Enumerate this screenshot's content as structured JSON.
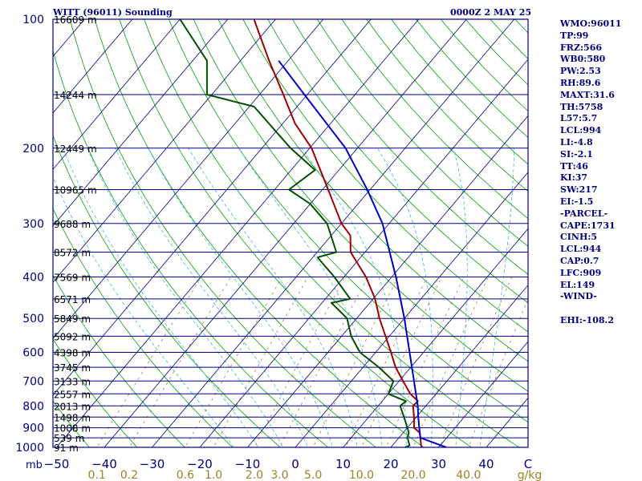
{
  "header": {
    "station_title": "WITT (96011) Sounding",
    "time_label": "0000Z  2 MAY 25"
  },
  "indices": [
    "WMO:96011",
    "TP:99",
    "FRZ:566",
    "WB0:580",
    "PW:2.53",
    "RH:89.6",
    "MAXT:31.6",
    "TH:5758",
    "L57:5.7",
    "LCL:994",
    "LI:-4.8",
    "SI:-2.1",
    "TT:46",
    "KI:37",
    "SW:217",
    "EI:-1.5",
    "-PARCEL-",
    "CAPE:1731",
    "CINH:5",
    "LCL:944",
    "CAP:0.7",
    "LFC:909",
    "EL:149",
    "-WIND-",
    "",
    "EHI:-108.2"
  ],
  "colors": {
    "frame": "#000080",
    "isobar": "#000080",
    "isotherm": "#000080",
    "dry_adiabat": "#00a000",
    "moist_adiabat": "#40b8d0",
    "mixing_ratio": "#a08040",
    "temperature": "#a00000",
    "dewpoint": "#005000",
    "parcel": "#0000c0",
    "label_red": "#c00000",
    "label_mixing": "#a08020"
  },
  "chart_data": {
    "type": "line",
    "subtype": "skew-t log-p sounding",
    "y_unit": "mb",
    "ylim": [
      1000,
      100
    ],
    "y_scale": "log",
    "pressure_ticks": [
      100,
      200,
      300,
      400,
      500,
      600,
      700,
      800,
      900,
      1000
    ],
    "temperature_ticks": [
      -50,
      -40,
      -30,
      -20,
      -10,
      0,
      10,
      20,
      30,
      40
    ],
    "temperature_tick_labels": [
      "−50",
      "−40",
      "−30",
      "−20",
      "−10",
      "0",
      "10",
      "20",
      "30",
      "40"
    ],
    "temperature_tick_end_label": "C",
    "mixing_ratio_ticks": [
      0.1,
      0.2,
      0.6,
      1.0,
      2.0,
      3.0,
      5.0,
      10.0,
      20.0,
      40.0
    ],
    "mixing_ratio_tick_labels": [
      "0.1",
      "0.2",
      "0.6",
      "1.0",
      "2.0",
      "3.0",
      "5.0",
      "10.0",
      "20.0",
      "40.0"
    ],
    "mixing_ratio_unit": "g/kg",
    "height_labels": [
      {
        "p": 100,
        "text": "16609 m"
      },
      {
        "p": 150,
        "text": "14244 m"
      },
      {
        "p": 200,
        "text": "12449 m"
      },
      {
        "p": 250,
        "text": "10965 m"
      },
      {
        "p": 300,
        "text": "9688 m"
      },
      {
        "p": 350,
        "text": "8572 m"
      },
      {
        "p": 400,
        "text": "7569 m"
      },
      {
        "p": 450,
        "text": "6571 m"
      },
      {
        "p": 500,
        "text": "5849 m"
      },
      {
        "p": 550,
        "text": "5092 m"
      },
      {
        "p": 600,
        "text": "4398 m"
      },
      {
        "p": 650,
        "text": "3745 m"
      },
      {
        "p": 700,
        "text": "3133 m"
      },
      {
        "p": 750,
        "text": "2557 m"
      },
      {
        "p": 800,
        "text": "2013 m"
      },
      {
        "p": 850,
        "text": "1498 m"
      },
      {
        "p": 900,
        "text": "1008 m"
      },
      {
        "p": 950,
        "text": "539 m"
      },
      {
        "p": 1000,
        "text": "91 m"
      }
    ],
    "series": [
      {
        "name": "temperature",
        "points": [
          [
            1000,
            26.6
          ],
          [
            990,
            26.0
          ],
          [
            950,
            24.5
          ],
          [
            925,
            23.5
          ],
          [
            900,
            21.4
          ],
          [
            850,
            19.5
          ],
          [
            800,
            17.3
          ],
          [
            780,
            17.5
          ],
          [
            750,
            14.6
          ],
          [
            700,
            10.8
          ],
          [
            650,
            6.8
          ],
          [
            600,
            3.2
          ],
          [
            550,
            -0.8
          ],
          [
            500,
            -5.2
          ],
          [
            450,
            -9.6
          ],
          [
            400,
            -15.4
          ],
          [
            350,
            -23.0
          ],
          [
            320,
            -26.0
          ],
          [
            300,
            -30.0
          ],
          [
            250,
            -38.8
          ],
          [
            200,
            -49.6
          ],
          [
            175,
            -57.5
          ],
          [
            150,
            -65.0
          ],
          [
            125,
            -74.0
          ],
          [
            100,
            -84.5
          ]
        ]
      },
      {
        "name": "dewpoint",
        "points": [
          [
            1000,
            23.0
          ],
          [
            990,
            23.6
          ],
          [
            950,
            21.8
          ],
          [
            925,
            21.2
          ],
          [
            900,
            20.0
          ],
          [
            850,
            17.4
          ],
          [
            800,
            14.6
          ],
          [
            780,
            15.0
          ],
          [
            750,
            10.0
          ],
          [
            700,
            8.8
          ],
          [
            650,
            3.3
          ],
          [
            600,
            -3.3
          ],
          [
            550,
            -8.0
          ],
          [
            500,
            -12.0
          ],
          [
            460,
            -18.0
          ],
          [
            450,
            -14.8
          ],
          [
            400,
            -22.0
          ],
          [
            360,
            -29.0
          ],
          [
            350,
            -26.0
          ],
          [
            300,
            -33.0
          ],
          [
            270,
            -40.0
          ],
          [
            250,
            -47.0
          ],
          [
            225,
            -45.0
          ],
          [
            200,
            -54.0
          ],
          [
            160,
            -69.0
          ],
          [
            150,
            -81.0
          ],
          [
            125,
            -87.0
          ],
          [
            100,
            -100.0
          ]
        ]
      },
      {
        "name": "parcel",
        "points": [
          [
            1000,
            31.6
          ],
          [
            950,
            24.5
          ],
          [
            900,
            22.5
          ],
          [
            850,
            20.4
          ],
          [
            800,
            18.3
          ],
          [
            700,
            13.1
          ],
          [
            600,
            7.1
          ],
          [
            500,
            0.0
          ],
          [
            400,
            -9.1
          ],
          [
            300,
            -21.4
          ],
          [
            250,
            -30.6
          ],
          [
            200,
            -42.5
          ],
          [
            150,
            -60.6
          ],
          [
            125,
            -72.0
          ]
        ]
      }
    ]
  }
}
